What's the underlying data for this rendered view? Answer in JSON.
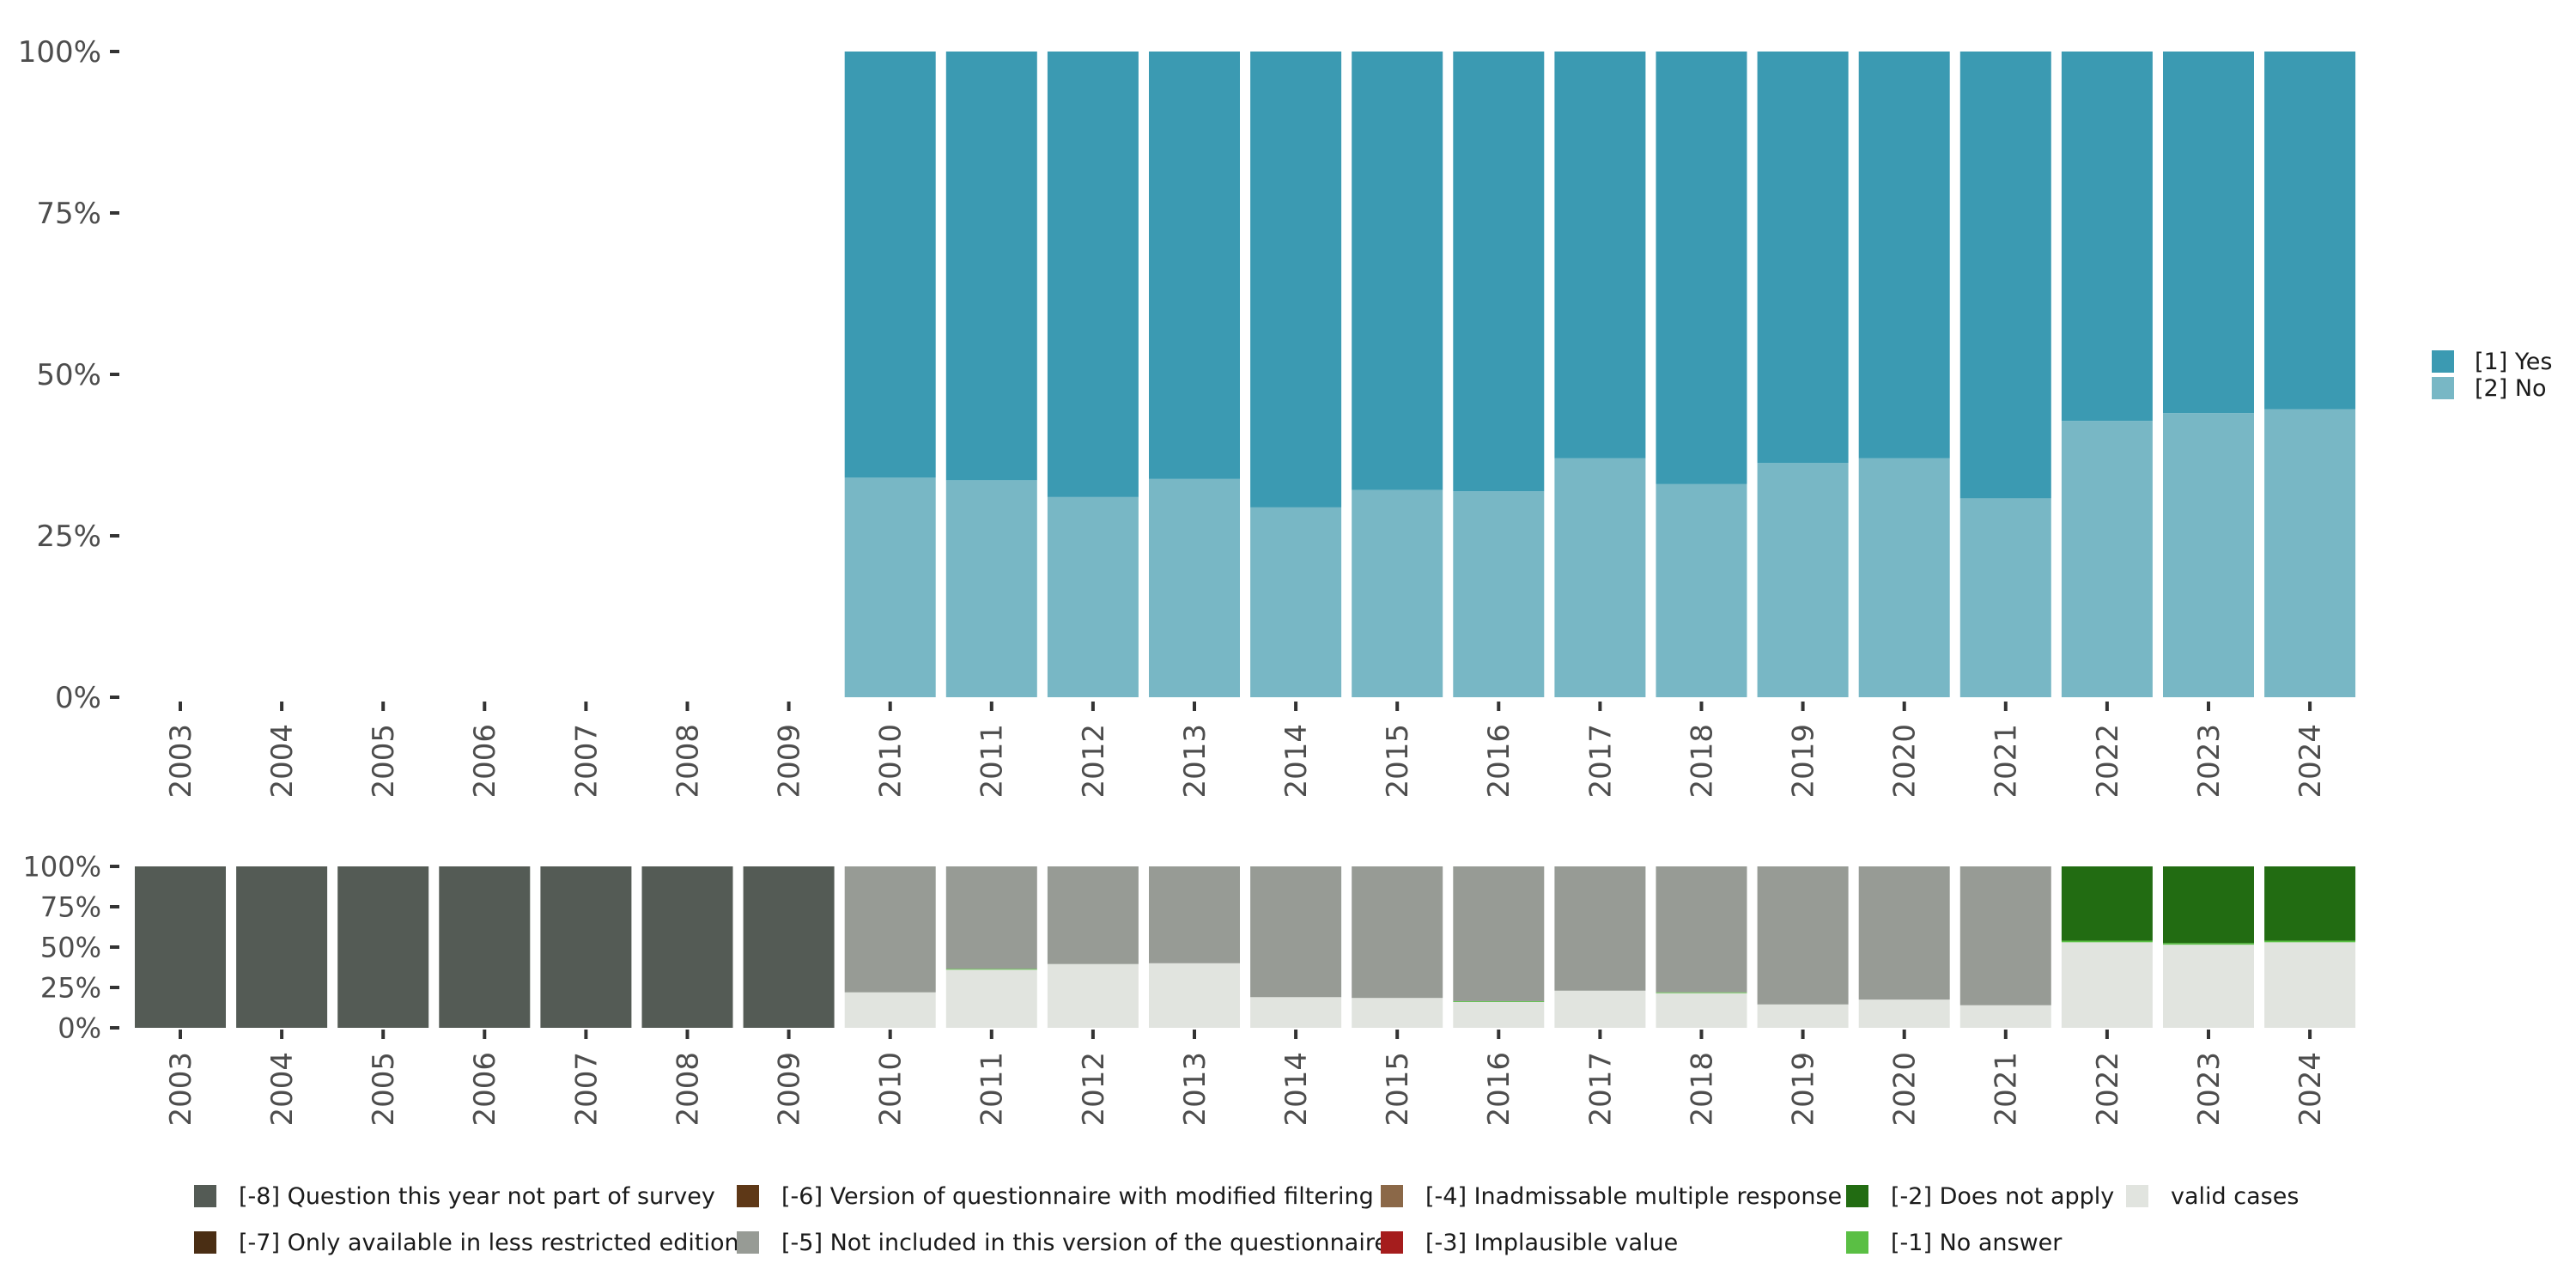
{
  "colors": {
    "yes": "#3b9ab2",
    "no": "#78b7c5",
    "q_not_part": "#545b55",
    "only_less_restricted": "#4a2e14",
    "modified_filtering": "#5e3817",
    "not_included": "#979b95",
    "inadmissable_multiple": "#8b6848",
    "implausible": "#a51d1d",
    "does_not_apply": "#226c12",
    "no_answer": "#5abf44",
    "valid": "#e1e4df"
  },
  "chart_data": [
    {
      "type": "bar",
      "stacked": true,
      "categories": [
        "2003",
        "2004",
        "2005",
        "2006",
        "2007",
        "2008",
        "2009",
        "2010",
        "2011",
        "2012",
        "2013",
        "2014",
        "2015",
        "2016",
        "2017",
        "2018",
        "2019",
        "2020",
        "2021",
        "2022",
        "2023",
        "2024"
      ],
      "series": [
        {
          "name": "[2] No",
          "color_key": "no",
          "values": [
            null,
            null,
            null,
            null,
            null,
            null,
            null,
            34,
            33.6,
            31,
            33.8,
            29.4,
            32.1,
            31.9,
            37,
            33,
            36.3,
            37,
            30.8,
            42.8,
            44,
            44.6
          ]
        },
        {
          "name": "[1] Yes",
          "color_key": "yes",
          "values": [
            null,
            null,
            null,
            null,
            null,
            null,
            null,
            66,
            66.4,
            69,
            66.2,
            70.6,
            67.9,
            68.1,
            63,
            67,
            63.7,
            63,
            69.2,
            57.2,
            56,
            55.4
          ]
        }
      ],
      "y_ticks": [
        "0%",
        "25%",
        "50%",
        "75%",
        "100%"
      ],
      "ylim": [
        0,
        100
      ],
      "legend": {
        "placement": "right",
        "items": [
          {
            "label": "[1] Yes",
            "color_key": "yes"
          },
          {
            "label": "[2] No",
            "color_key": "no"
          }
        ]
      }
    },
    {
      "type": "bar",
      "stacked": true,
      "categories": [
        "2003",
        "2004",
        "2005",
        "2006",
        "2007",
        "2008",
        "2009",
        "2010",
        "2011",
        "2012",
        "2013",
        "2014",
        "2015",
        "2016",
        "2017",
        "2018",
        "2019",
        "2020",
        "2021",
        "2022",
        "2023",
        "2024"
      ],
      "series": [
        {
          "name": "valid cases",
          "color_key": "valid",
          "values": [
            0,
            0,
            0,
            0,
            0,
            0,
            0,
            22,
            36,
            39.5,
            40,
            19,
            18.5,
            16,
            23,
            21.5,
            14.5,
            17.5,
            14,
            53,
            51.5,
            53
          ]
        },
        {
          "name": "[-1] No answer",
          "color_key": "no_answer",
          "values": [
            0,
            0,
            0,
            0,
            0,
            0,
            0,
            0,
            0.5,
            0,
            0,
            0,
            0,
            0.5,
            0,
            0.5,
            0,
            0,
            0,
            1,
            1,
            1
          ]
        },
        {
          "name": "[-2] Does not apply",
          "color_key": "does_not_apply",
          "values": [
            0,
            0,
            0,
            0,
            0,
            0,
            0,
            0,
            0,
            0,
            0,
            0,
            0,
            0,
            0,
            0,
            0,
            0,
            0,
            46,
            47.5,
            46
          ]
        },
        {
          "name": "[-5] Not included in this version of the questionnaire",
          "color_key": "not_included",
          "values": [
            0,
            0,
            0,
            0,
            0,
            0,
            0,
            78,
            63.5,
            60.5,
            60,
            81,
            81.5,
            83.5,
            77,
            78,
            85.5,
            82.5,
            86,
            0,
            0,
            0
          ]
        },
        {
          "name": "[-8] Question this year not part of survey",
          "color_key": "q_not_part",
          "values": [
            100,
            100,
            100,
            100,
            100,
            100,
            100,
            0,
            0,
            0,
            0,
            0,
            0,
            0,
            0,
            0,
            0,
            0,
            0,
            0,
            0,
            0
          ]
        }
      ],
      "y_ticks": [
        "0%",
        "25%",
        "50%",
        "75%",
        "100%"
      ],
      "ylim": [
        0,
        100
      ],
      "legend": {
        "placement": "bottom",
        "items": [
          {
            "label": "[-8] Question this year not part of survey",
            "color_key": "q_not_part"
          },
          {
            "label": "[-7] Only available in less restricted edition",
            "color_key": "only_less_restricted"
          },
          {
            "label": "[-6] Version of questionnaire with modified filtering",
            "color_key": "modified_filtering"
          },
          {
            "label": "[-5] Not included in this version of the questionnaire",
            "color_key": "not_included"
          },
          {
            "label": "[-4] Inadmissable multiple response",
            "color_key": "inadmissable_multiple"
          },
          {
            "label": "[-3] Implausible value",
            "color_key": "implausible"
          },
          {
            "label": "[-2] Does not apply",
            "color_key": "does_not_apply"
          },
          {
            "label": "[-1] No answer",
            "color_key": "no_answer"
          },
          {
            "label": "valid cases",
            "color_key": "valid"
          }
        ]
      }
    }
  ]
}
